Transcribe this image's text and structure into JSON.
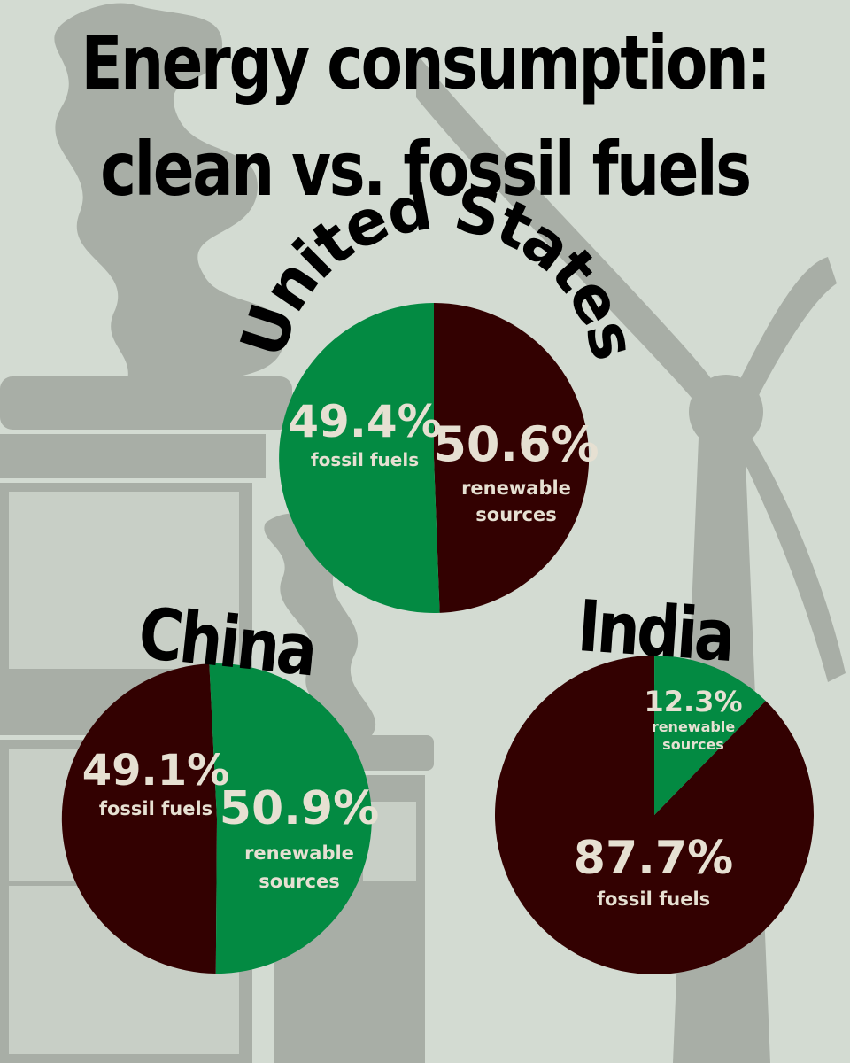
{
  "title": {
    "line1": "Energy consumption:",
    "line2": "clean vs. fossil fuels"
  },
  "colors": {
    "background": "#d3dbd2",
    "silhouette": "#a8aea6",
    "fossil": "#330101",
    "renewable": "#038a42",
    "label": "#e6e0d2"
  },
  "background_icons": [
    "factory-smokestack-icon",
    "smoke-plume-icon",
    "wind-turbine-icon"
  ],
  "chart_data": [
    {
      "type": "pie",
      "title": "United States",
      "slices": [
        {
          "value": 49.4,
          "value_label": "49.4%",
          "caption": "fossil fuels",
          "color": "#330101"
        },
        {
          "value": 50.6,
          "value_label": "50.6%",
          "caption": "renewable sources",
          "color": "#038a42"
        }
      ]
    },
    {
      "type": "pie",
      "title": "China",
      "slices": [
        {
          "value": 49.1,
          "value_label": "49.1%",
          "caption": "fossil fuels",
          "color": "#330101"
        },
        {
          "value": 50.9,
          "value_label": "50.9%",
          "caption": "renewable sources",
          "color": "#038a42"
        }
      ]
    },
    {
      "type": "pie",
      "title": "India",
      "slices": [
        {
          "value": 87.7,
          "value_label": "87.7%",
          "caption": "fossil fuels",
          "color": "#330101"
        },
        {
          "value": 12.3,
          "value_label": "12.3%",
          "caption": "renewable sources",
          "color": "#038a42"
        }
      ]
    }
  ]
}
